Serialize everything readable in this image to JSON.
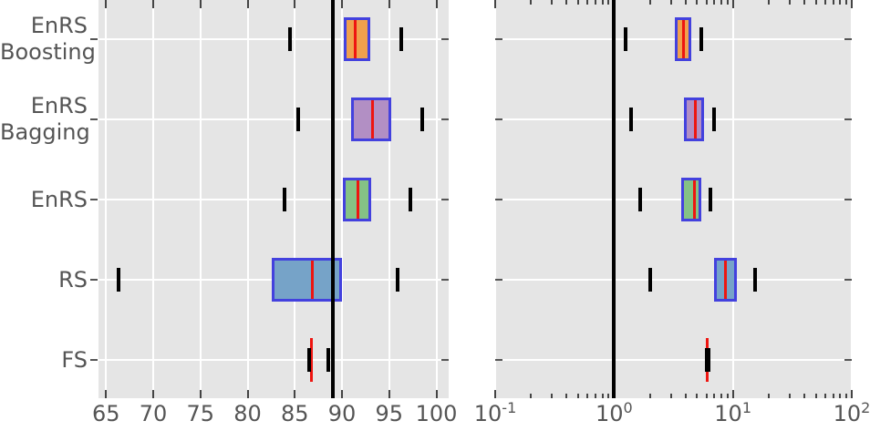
{
  "figure_style": {
    "background": "#ffffff",
    "plot_background": "#e5e5e5",
    "grid_color": "#ffffff",
    "tick_color": "#444444",
    "label_color": "#555555",
    "box_edge_color": "#4341de",
    "median_color": "#ee1510",
    "cap_color": "#000000",
    "refline_color": "#000000"
  },
  "y_axis": {
    "labels": [
      {
        "lines": [
          "EnRS",
          "Boosting"
        ]
      },
      {
        "lines": [
          "EnRS",
          "Bagging"
        ]
      },
      {
        "lines": [
          "EnRS"
        ]
      },
      {
        "lines": [
          "RS"
        ]
      },
      {
        "lines": [
          "FS"
        ]
      }
    ]
  },
  "chart_data": [
    {
      "type": "boxplot-horizontal",
      "title": "",
      "xlabel": "",
      "ylabel": "",
      "scale": "linear",
      "xlim": [
        64.2,
        101.3
      ],
      "xticks": [
        65,
        70,
        75,
        80,
        85,
        90,
        95,
        100
      ],
      "xtick_labels": [
        "65",
        "70",
        "75",
        "80",
        "85",
        "90",
        "95",
        "100"
      ],
      "grid": true,
      "refline": 89.0,
      "categories": [
        "EnRS Boosting",
        "EnRS Bagging",
        "EnRS",
        "RS",
        "FS"
      ],
      "series": [
        {
          "label": "EnRS Boosting",
          "fill": "#f0a04d",
          "whisker_lo": 84.5,
          "q1": 90.2,
          "median": 91.4,
          "q3": 93.0,
          "whisker_hi": 96.3
        },
        {
          "label": "EnRS Bagging",
          "fill": "#b28fc4",
          "whisker_lo": 85.4,
          "q1": 91.0,
          "median": 93.2,
          "q3": 95.2,
          "whisker_hi": 98.5
        },
        {
          "label": "EnRS",
          "fill": "#85c285",
          "whisker_lo": 83.9,
          "q1": 90.1,
          "median": 91.7,
          "q3": 93.1,
          "whisker_hi": 97.2
        },
        {
          "label": "RS",
          "fill": "#76a3c8",
          "whisker_lo": 66.3,
          "q1": 82.6,
          "median": 86.9,
          "q3": 90.0,
          "whisker_hi": 95.9
        },
        {
          "label": "FS",
          "fill": null,
          "whisker_lo": 86.5,
          "q1": 86.8,
          "median": 86.8,
          "q3": 86.8,
          "whisker_hi": 88.5
        }
      ]
    },
    {
      "type": "boxplot-horizontal",
      "title": "",
      "xlabel": "",
      "ylabel": "",
      "scale": "log",
      "xlim": [
        0.1,
        100
      ],
      "xticks": [
        0.1,
        1,
        10,
        100
      ],
      "xtick_labels": [
        {
          "base": "10",
          "exp": "-1"
        },
        {
          "base": "10",
          "exp": "0"
        },
        {
          "base": "10",
          "exp": "1"
        },
        {
          "base": "10",
          "exp": "2"
        }
      ],
      "grid": true,
      "refline": 1.0,
      "categories": [
        "EnRS Boosting",
        "EnRS Bagging",
        "EnRS",
        "RS",
        "FS"
      ],
      "series": [
        {
          "label": "EnRS Boosting",
          "fill": "#f0a04d",
          "whisker_lo": 1.25,
          "q1": 3.25,
          "median": 3.85,
          "q3": 4.5,
          "whisker_hi": 5.4
        },
        {
          "label": "EnRS Bagging",
          "fill": "#b28fc4",
          "whisker_lo": 1.4,
          "q1": 3.9,
          "median": 4.8,
          "q3": 5.7,
          "whisker_hi": 7.0
        },
        {
          "label": "EnRS",
          "fill": "#85c285",
          "whisker_lo": 1.65,
          "q1": 3.7,
          "median": 4.75,
          "q3": 5.45,
          "whisker_hi": 6.5
        },
        {
          "label": "RS",
          "fill": "#76a3c8",
          "whisker_lo": 2.0,
          "q1": 7.0,
          "median": 8.7,
          "q3": 10.8,
          "whisker_hi": 15.4
        },
        {
          "label": "FS",
          "fill": null,
          "whisker_lo": 6.05,
          "q1": 6.1,
          "median": 6.1,
          "q3": 6.1,
          "whisker_hi": 6.2
        }
      ]
    }
  ]
}
